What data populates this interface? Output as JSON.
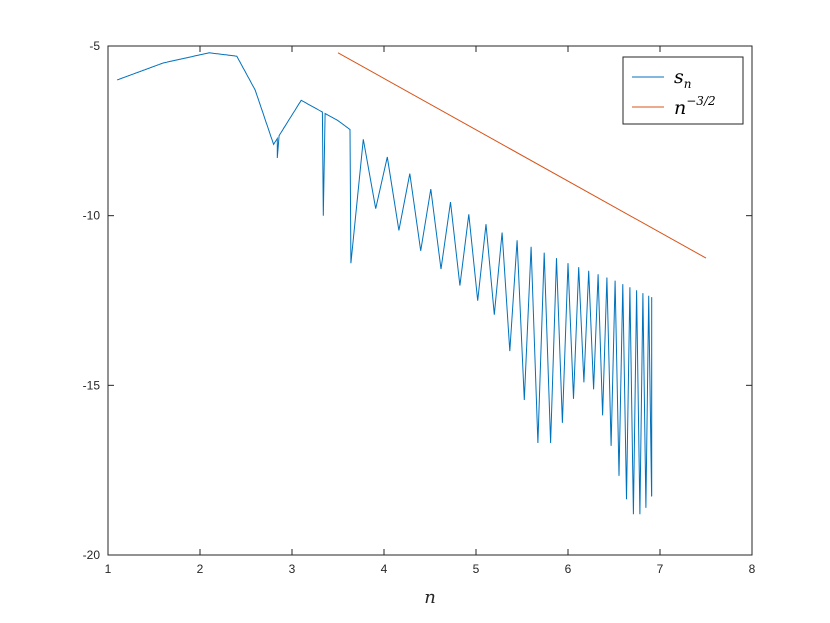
{
  "chart_data": {
    "type": "line",
    "xlabel": "n",
    "ylabel": "",
    "xlim": [
      1,
      8
    ],
    "ylim": [
      -20,
      -5
    ],
    "xticks": [
      1,
      2,
      3,
      4,
      5,
      6,
      7,
      8
    ],
    "yticks": [
      -5,
      -10,
      -15,
      -20
    ],
    "xtick_labels": [
      "1",
      "2",
      "3",
      "4",
      "5",
      "6",
      "7",
      "8"
    ],
    "ytick_labels": [
      "-5",
      "-10",
      "-15",
      "-20"
    ],
    "grid": false,
    "legend_position": "top-right",
    "series": [
      {
        "name": "s",
        "name_subscript": "n",
        "color": "#0072BD",
        "style": "oscillating",
        "x_range": [
          1.1,
          6.91
        ],
        "envelope_upper": [
          [
            1.1,
            -6.0
          ],
          [
            1.6,
            -5.5
          ],
          [
            2.1,
            -5.2
          ],
          [
            2.4,
            -5.3
          ],
          [
            2.6,
            -6.3
          ],
          [
            2.8,
            -7.9
          ],
          [
            3.1,
            -6.6
          ],
          [
            3.5,
            -7.2
          ],
          [
            4.0,
            -8.2
          ],
          [
            4.5,
            -9.2
          ],
          [
            5.0,
            -10.1
          ],
          [
            5.5,
            -10.8
          ],
          [
            6.0,
            -11.4
          ],
          [
            6.5,
            -11.9
          ],
          [
            6.91,
            -12.4
          ]
        ],
        "first_dips": [
          [
            2.84,
            -8.3
          ],
          [
            3.34,
            -10.0
          ],
          [
            3.64,
            -11.4
          ]
        ],
        "deep_dips": [
          [
            5.74,
            -16.7
          ],
          [
            6.74,
            -18.8
          ]
        ],
        "end_value": [
          6.91,
          -14.7
        ]
      },
      {
        "name": "n",
        "name_superscript": "−3/2",
        "color": "#D95319",
        "style": "straight",
        "x": [
          3.5,
          7.5
        ],
        "y": [
          -5.2,
          -11.25
        ]
      }
    ]
  }
}
